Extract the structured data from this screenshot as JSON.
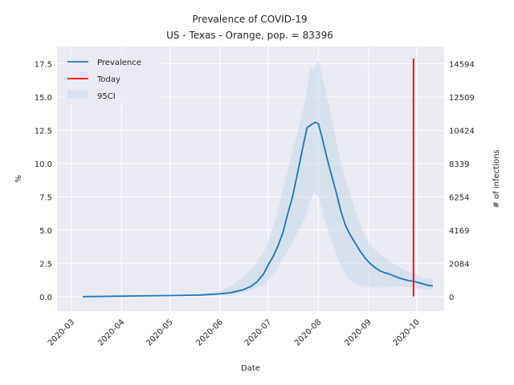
{
  "chart_data": {
    "type": "line",
    "title": "Prevalence of COVID-19",
    "subtitle": "US - Texas - Orange, pop. = 83396",
    "xlabel": "Date",
    "ylabel": "%",
    "y2label": "# of infections",
    "x_ticks": [
      "2020-03",
      "2020-04",
      "2020-05",
      "2020-06",
      "2020-07",
      "2020-08",
      "2020-09",
      "2020-10"
    ],
    "y_ticks": [
      "0.0",
      "2.5",
      "5.0",
      "7.5",
      "10.0",
      "12.5",
      "15.0",
      "17.5"
    ],
    "y2_ticks": [
      "0",
      "2084",
      "4169",
      "6254",
      "8339",
      "10424",
      "12509",
      "14594"
    ],
    "ylim": [
      -1.1,
      18.8
    ],
    "xlim": [
      "2020-02-21",
      "2020-10-18"
    ],
    "grid": true,
    "legend_position": "top-left",
    "legend": {
      "prevalence": "Prevalence",
      "today": "Today",
      "ci": "95CI"
    },
    "colors": {
      "prevalence": "#1f77b4",
      "today": "#ff0000",
      "ci": "#c7d7ea",
      "background": "#eaeaf2",
      "grid": "#ffffff"
    },
    "today": {
      "date": "2020-09-29",
      "y": [
        0,
        17.9
      ]
    },
    "series": [
      {
        "name": "Prevalence",
        "x": [
          "2020-03-08",
          "2020-03-25",
          "2020-04-15",
          "2020-05-05",
          "2020-05-20",
          "2020-06-01",
          "2020-06-08",
          "2020-06-15",
          "2020-06-20",
          "2020-06-24",
          "2020-06-28",
          "2020-07-01",
          "2020-07-04",
          "2020-07-07",
          "2020-07-10",
          "2020-07-13",
          "2020-07-16",
          "2020-07-19",
          "2020-07-22",
          "2020-07-25",
          "2020-07-28",
          "2020-07-30",
          "2020-08-01",
          "2020-08-03",
          "2020-08-06",
          "2020-08-09",
          "2020-08-12",
          "2020-08-15",
          "2020-08-18",
          "2020-08-21",
          "2020-08-24",
          "2020-08-27",
          "2020-08-30",
          "2020-09-02",
          "2020-09-05",
          "2020-09-08",
          "2020-09-11",
          "2020-09-14",
          "2020-09-17",
          "2020-09-20",
          "2020-09-23",
          "2020-09-26",
          "2020-09-29",
          "2020-10-02",
          "2020-10-05",
          "2020-10-08",
          "2020-10-11"
        ],
        "y": [
          0.0,
          0.02,
          0.05,
          0.08,
          0.12,
          0.2,
          0.3,
          0.5,
          0.75,
          1.1,
          1.7,
          2.4,
          3.0,
          3.8,
          4.8,
          6.2,
          7.5,
          9.2,
          11.0,
          12.7,
          12.95,
          13.1,
          13.0,
          12.1,
          10.6,
          9.2,
          7.9,
          6.4,
          5.3,
          4.6,
          4.0,
          3.4,
          2.9,
          2.5,
          2.2,
          1.95,
          1.8,
          1.7,
          1.55,
          1.4,
          1.3,
          1.2,
          1.15,
          1.05,
          0.95,
          0.85,
          0.8
        ]
      },
      {
        "name": "95CI",
        "x": [
          "2020-05-20",
          "2020-06-01",
          "2020-06-08",
          "2020-06-15",
          "2020-06-22",
          "2020-06-29",
          "2020-07-06",
          "2020-07-13",
          "2020-07-20",
          "2020-07-24",
          "2020-07-27",
          "2020-07-29",
          "2020-08-01",
          "2020-08-05",
          "2020-08-10",
          "2020-08-15",
          "2020-08-20",
          "2020-08-25",
          "2020-09-01",
          "2020-09-08",
          "2020-09-15",
          "2020-09-22",
          "2020-09-29",
          "2020-10-05",
          "2020-10-11"
        ],
        "upper": [
          0.2,
          0.4,
          0.8,
          1.4,
          2.2,
          3.5,
          6.0,
          9.5,
          12.8,
          14.8,
          17.3,
          17.0,
          17.8,
          15.8,
          13.0,
          10.0,
          8.0,
          6.0,
          4.0,
          3.2,
          2.6,
          2.1,
          1.7,
          1.4,
          1.3
        ],
        "lower": [
          0.05,
          0.1,
          0.15,
          0.3,
          0.55,
          1.0,
          2.0,
          3.4,
          5.0,
          6.0,
          7.2,
          7.8,
          7.6,
          5.8,
          4.0,
          2.2,
          1.3,
          0.9,
          0.75,
          0.7,
          0.75,
          0.75,
          0.7,
          0.55,
          0.45
        ]
      }
    ]
  }
}
